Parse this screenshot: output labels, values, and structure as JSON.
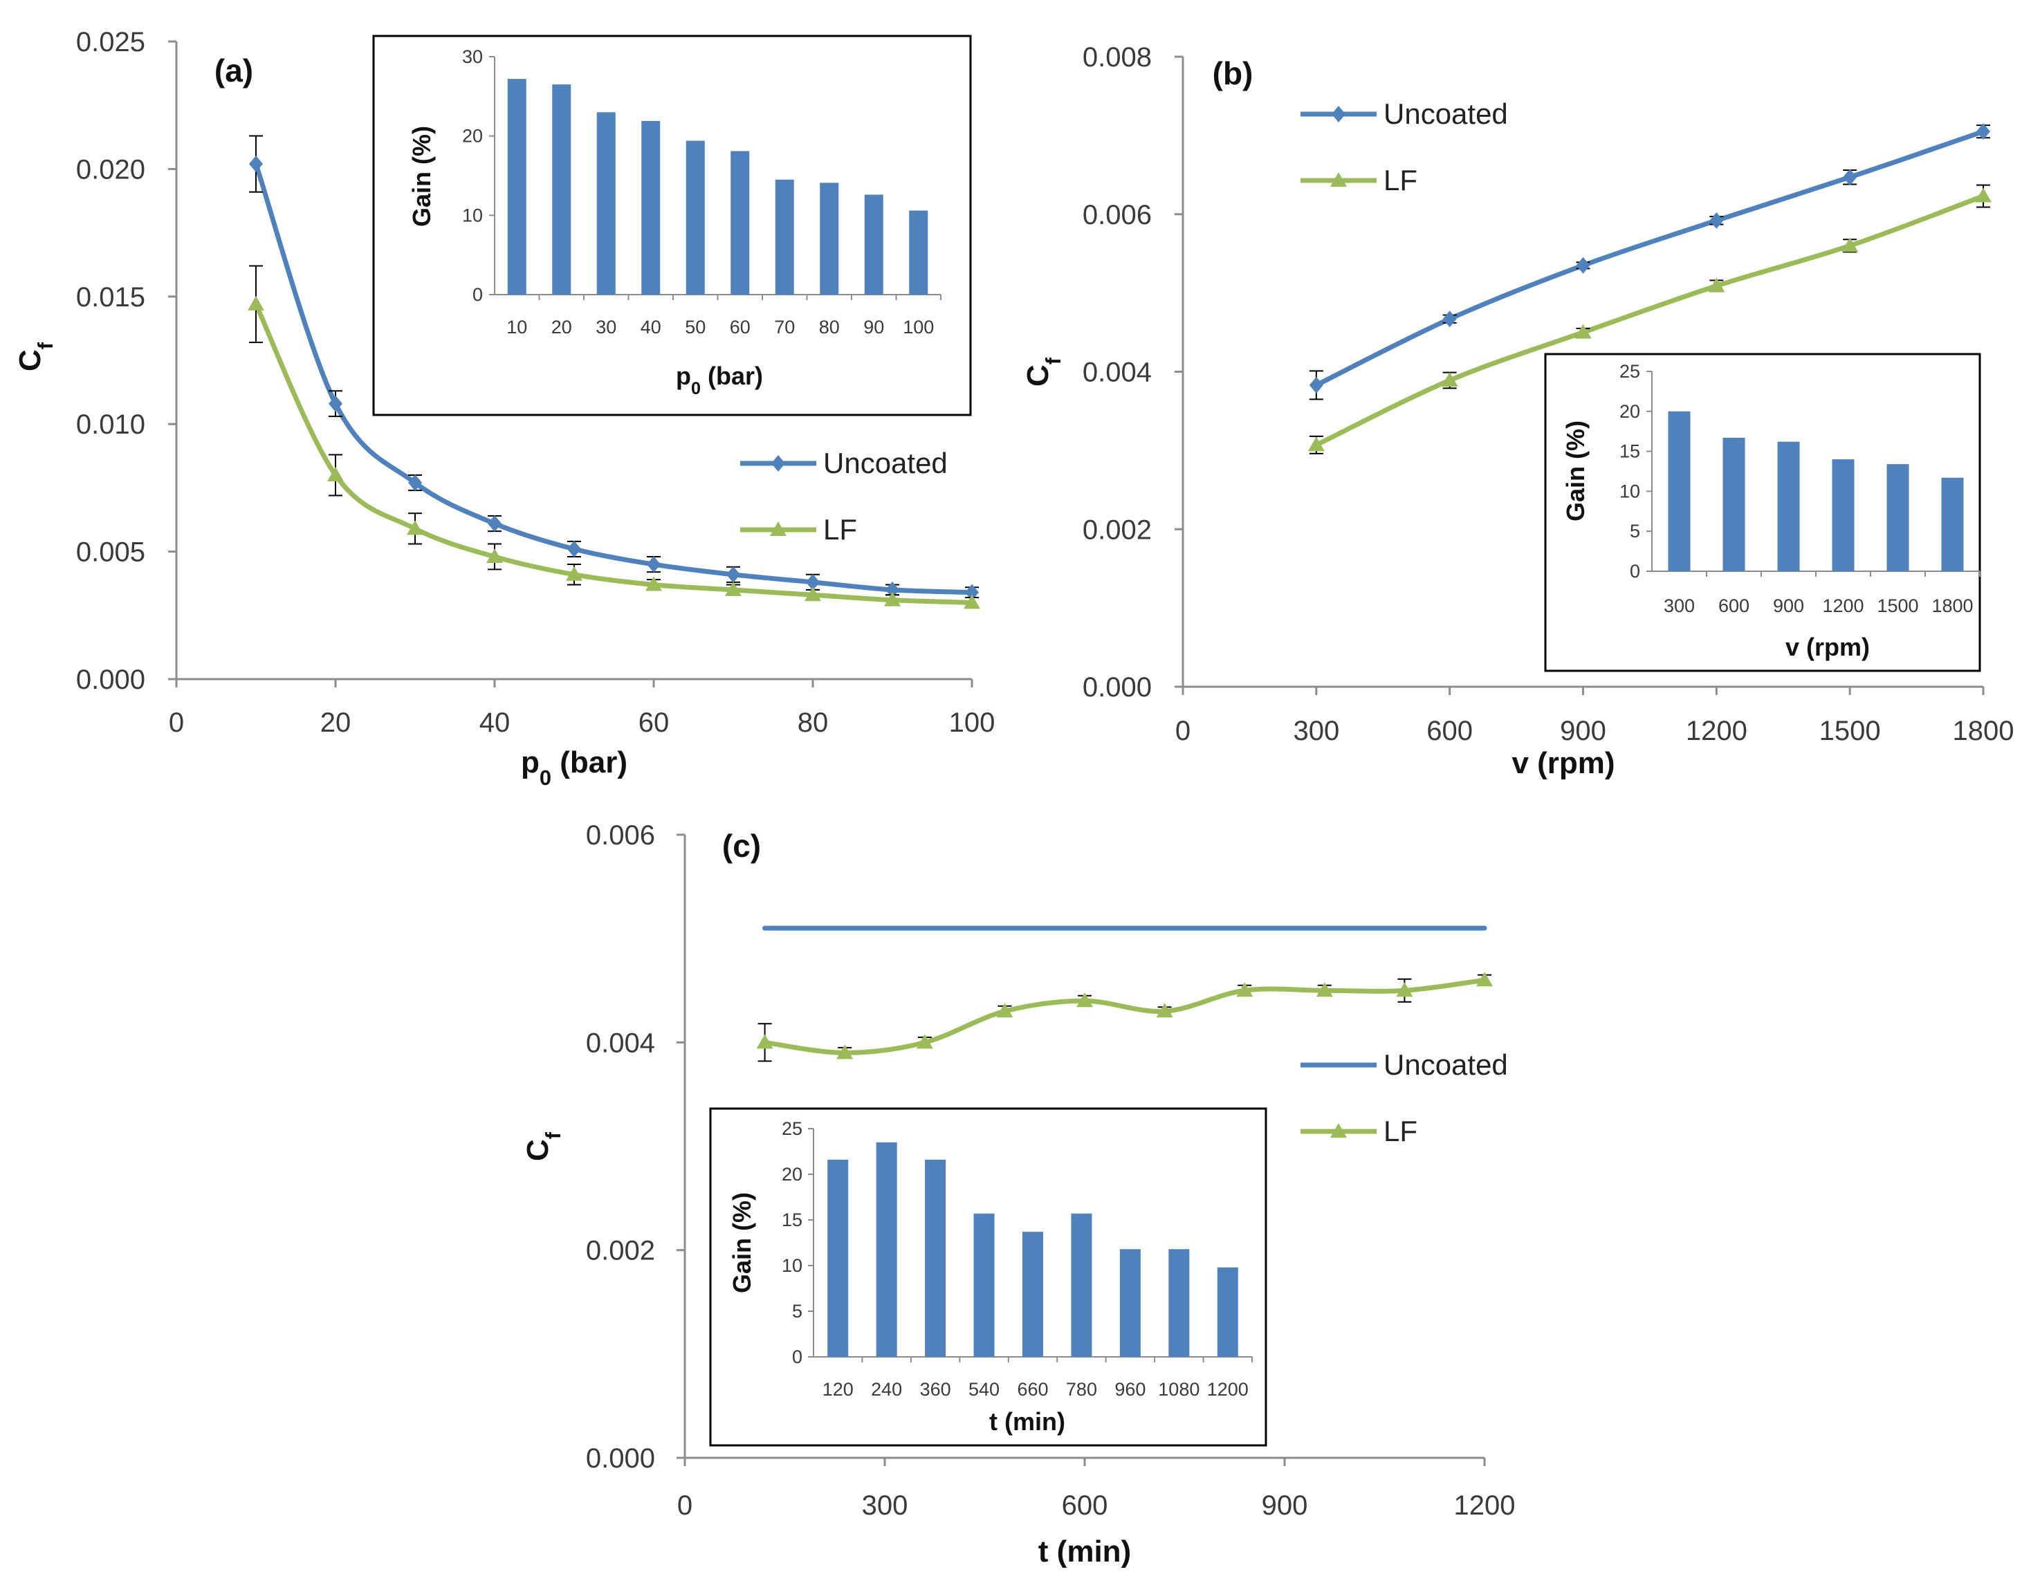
{
  "colors": {
    "uncoated": "#4f81bd",
    "lf": "#9bbb59",
    "bar": "#4f81bd",
    "errorbar": "#000000"
  },
  "chart_data": [
    {
      "panel": "(a)",
      "type": "line",
      "xlabel": "p",
      "xlabel_sub": "0",
      "xlabel_unit": " (bar)",
      "ylabel": "C",
      "ylabel_sub": "f",
      "xlim": [
        0,
        100
      ],
      "ylim": [
        0,
        0.025
      ],
      "xticks": [
        0,
        20,
        40,
        60,
        80,
        100
      ],
      "xtick_labels": [
        "0",
        "20",
        "40",
        "60",
        "80",
        "100"
      ],
      "yticks": [
        0,
        0.005,
        0.01,
        0.015,
        0.02,
        0.025
      ],
      "ytick_labels": [
        "0.000",
        "0.005",
        "0.010",
        "0.015",
        "0.020",
        "0.025"
      ],
      "legend": [
        "Uncoated",
        "LF"
      ],
      "x": [
        10,
        20,
        30,
        40,
        50,
        60,
        70,
        80,
        90,
        100
      ],
      "series": [
        {
          "name": "Uncoated",
          "marker": "diamond",
          "values": [
            0.0202,
            0.0108,
            0.0077,
            0.0061,
            0.0051,
            0.0045,
            0.0041,
            0.0038,
            0.0035,
            0.0034
          ],
          "errors": [
            0.0011,
            0.0005,
            0.0003,
            0.0003,
            0.0003,
            0.0003,
            0.0003,
            0.0003,
            0.0002,
            0.0002
          ]
        },
        {
          "name": "LF",
          "marker": "triangle",
          "values": [
            0.0147,
            0.008,
            0.0059,
            0.0048,
            0.0041,
            0.0037,
            0.0035,
            0.0033,
            0.0031,
            0.003
          ],
          "errors": [
            0.0015,
            0.0008,
            0.0006,
            0.0005,
            0.0004,
            0.0002,
            0.0002,
            0.0002,
            0.0002,
            0.0002
          ]
        }
      ],
      "inset": {
        "type": "bar",
        "ylabel": "Gain (%)",
        "xlabel": "p",
        "xlabel_sub": "0",
        "xlabel_unit": " (bar)",
        "categories": [
          "10",
          "20",
          "30",
          "40",
          "50",
          "60",
          "70",
          "80",
          "90",
          "100"
        ],
        "values": [
          27.2,
          26.5,
          23.0,
          21.9,
          19.4,
          18.1,
          14.5,
          14.1,
          12.6,
          10.6
        ],
        "ylim": [
          0,
          30
        ],
        "yticks": [
          0,
          10,
          20,
          30
        ],
        "ytick_labels": [
          "0",
          "10",
          "20",
          "30"
        ]
      }
    },
    {
      "panel": "(b)",
      "type": "line",
      "xlabel": "v (rpm)",
      "ylabel": "C",
      "ylabel_sub": "f",
      "xlim": [
        0,
        1800
      ],
      "ylim": [
        0,
        0.008
      ],
      "xticks": [
        0,
        300,
        600,
        900,
        1200,
        1500,
        1800
      ],
      "xtick_labels": [
        "0",
        "300",
        "600",
        "900",
        "1200",
        "1500",
        "1800"
      ],
      "yticks": [
        0,
        0.002,
        0.004,
        0.006,
        0.008
      ],
      "ytick_labels": [
        "0.000",
        "0.002",
        "0.004",
        "0.006",
        "0.008"
      ],
      "legend": [
        "Uncoated",
        "LF"
      ],
      "x": [
        300,
        600,
        900,
        1200,
        1500,
        1800
      ],
      "series": [
        {
          "name": "Uncoated",
          "marker": "diamond",
          "values": [
            0.00383,
            0.00467,
            0.00535,
            0.00592,
            0.00647,
            0.00705
          ],
          "errors": [
            0.00018,
            5e-05,
            4e-05,
            5e-05,
            9e-05,
            8e-05
          ]
        },
        {
          "name": "LF",
          "marker": "triangle",
          "values": [
            0.00307,
            0.00389,
            0.0045,
            0.00509,
            0.0056,
            0.00623
          ],
          "errors": [
            0.00011,
            0.0001,
            5e-05,
            7e-05,
            8e-05,
            0.00014
          ]
        }
      ],
      "inset": {
        "type": "bar",
        "ylabel": "Gain (%)",
        "xlabel": "v (rpm)",
        "categories": [
          "300",
          "600",
          "900",
          "1200",
          "1500",
          "1800"
        ],
        "values": [
          20.0,
          16.7,
          16.2,
          14.0,
          13.4,
          11.7
        ],
        "ylim": [
          0,
          25
        ],
        "yticks": [
          0,
          5,
          10,
          15,
          20,
          25
        ],
        "ytick_labels": [
          "0",
          "5",
          "10",
          "15",
          "20",
          "25"
        ]
      }
    },
    {
      "panel": "(c)",
      "type": "line",
      "xlabel": "t (min)",
      "ylabel": "C",
      "ylabel_sub": "f",
      "xlim": [
        0,
        1200
      ],
      "ylim": [
        0,
        0.006
      ],
      "xticks": [
        0,
        300,
        600,
        900,
        1200
      ],
      "xtick_labels": [
        "0",
        "300",
        "600",
        "900",
        "1200"
      ],
      "yticks": [
        0,
        0.002,
        0.004,
        0.006
      ],
      "ytick_labels": [
        "0.000",
        "0.002",
        "0.004",
        "0.006"
      ],
      "legend": [
        "Uncoated",
        "LF"
      ],
      "x": [
        120,
        240,
        360,
        480,
        600,
        720,
        840,
        960,
        1080,
        1200
      ],
      "series": [
        {
          "name": "Uncoated",
          "marker": "none",
          "x": [
            120,
            1200
          ],
          "values": [
            0.0051,
            0.0051
          ],
          "errors": [
            0,
            0
          ]
        },
        {
          "name": "LF",
          "marker": "triangle",
          "values": [
            0.004,
            0.0039,
            0.004,
            0.0043,
            0.0044,
            0.0043,
            0.0045,
            0.0045,
            0.0045,
            0.0046
          ],
          "errors": [
            0.00018,
            5e-05,
            5e-05,
            5e-05,
            5e-05,
            4e-05,
            5e-05,
            5e-05,
            0.00011,
            5e-05
          ]
        }
      ],
      "inset": {
        "type": "bar",
        "ylabel": "Gain (%)",
        "xlabel": "t (min)",
        "categories": [
          "120",
          "240",
          "360",
          "540",
          "660",
          "780",
          "960",
          "1080",
          "1200"
        ],
        "values": [
          21.6,
          23.5,
          21.6,
          15.7,
          13.7,
          15.7,
          11.8,
          11.8,
          9.8
        ],
        "ylim": [
          0,
          25
        ],
        "yticks": [
          0,
          5,
          10,
          15,
          20,
          25
        ],
        "ytick_labels": [
          "0",
          "5",
          "10",
          "15",
          "20",
          "25"
        ]
      }
    }
  ]
}
